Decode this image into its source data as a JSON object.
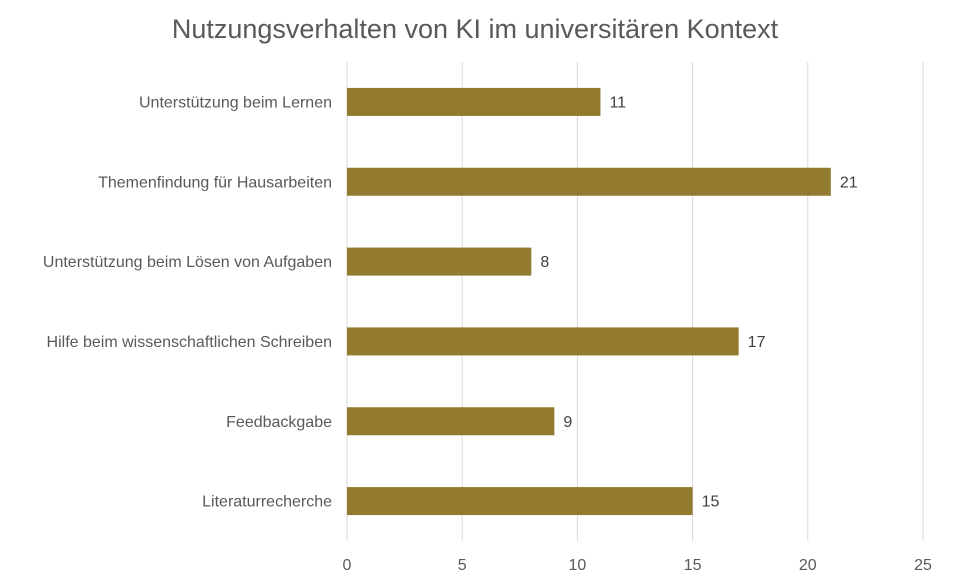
{
  "chart_data": {
    "type": "bar",
    "orientation": "horizontal",
    "title": "Nutzungsverhalten von KI im universitären Kontext",
    "xlabel": "",
    "ylabel": "",
    "categories": [
      "Unterstützung beim Lernen",
      "Themenfindung für Hausarbeiten",
      "Unterstützung beim Lösen von Aufgaben",
      "Hilfe beim wissenschaftlichen Schreiben",
      "Feedbackgabe",
      "Literaturrecherche"
    ],
    "values": [
      11,
      21,
      8,
      17,
      9,
      15
    ],
    "xlim": [
      0,
      25
    ],
    "xticks": [
      0,
      5,
      10,
      15,
      20,
      25
    ],
    "data_labels": true,
    "grid": true,
    "legend": "none",
    "bar_color": "#927A2E",
    "grid_color": "#D9D9D9",
    "text_color": "#595959"
  }
}
